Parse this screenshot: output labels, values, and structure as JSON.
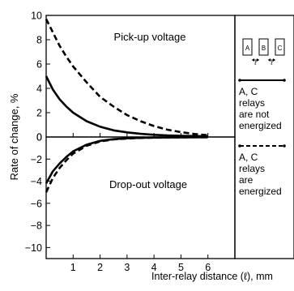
{
  "chart_data": [
    {
      "type": "line",
      "panel": "top",
      "title": "Pick-up voltage",
      "xlim": [
        0,
        7
      ],
      "ylim": [
        0,
        10
      ],
      "yticks": [
        0,
        2,
        4,
        6,
        8,
        10
      ],
      "series": [
        {
          "name": "A, C relays are not energized",
          "style": "solid",
          "x": [
            0,
            0.25,
            0.5,
            0.75,
            1,
            1.5,
            2,
            2.5,
            3,
            3.5,
            4,
            4.5,
            5,
            5.5,
            6
          ],
          "y": [
            5.0,
            3.9,
            3.1,
            2.5,
            2.0,
            1.3,
            0.85,
            0.55,
            0.38,
            0.26,
            0.18,
            0.13,
            0.1,
            0.08,
            0.06
          ]
        },
        {
          "name": "A, C relays are energized",
          "style": "dashed",
          "x": [
            0,
            0.25,
            0.5,
            0.75,
            1,
            1.5,
            2,
            2.5,
            3,
            3.5,
            4,
            4.5,
            5,
            5.5,
            6
          ],
          "y": [
            9.7,
            8.6,
            7.5,
            6.6,
            5.8,
            4.5,
            3.3,
            2.5,
            1.8,
            1.3,
            0.9,
            0.6,
            0.4,
            0.25,
            0.15
          ]
        }
      ]
    },
    {
      "type": "line",
      "panel": "bottom",
      "title": "Drop-out voltage",
      "xlim": [
        0,
        7
      ],
      "ylim": [
        -11,
        0
      ],
      "yticks": [
        0,
        -2,
        -4,
        -6,
        -8,
        -10
      ],
      "series": [
        {
          "name": "A, C relays are not energized",
          "style": "solid",
          "x": [
            0,
            0.25,
            0.5,
            0.75,
            1,
            1.5,
            2,
            2.5,
            3,
            3.5,
            4,
            5,
            6
          ],
          "y": [
            -4.2,
            -3.1,
            -2.4,
            -1.8,
            -1.3,
            -0.7,
            -0.35,
            -0.2,
            -0.12,
            -0.08,
            -0.05,
            -0.03,
            -0.02
          ]
        },
        {
          "name": "A, C relays are energized",
          "style": "dashed",
          "x": [
            0,
            0.25,
            0.5,
            0.75,
            1,
            1.5,
            2,
            2.5,
            3,
            3.5,
            4,
            5,
            6
          ],
          "y": [
            -5.0,
            -3.7,
            -2.8,
            -2.1,
            -1.5,
            -0.8,
            -0.4,
            -0.22,
            -0.14,
            -0.09,
            -0.06,
            -0.03,
            -0.02
          ]
        }
      ]
    }
  ],
  "axes": {
    "ylabel": "Rate of change, %",
    "xlabel": "Inter-relay distance (ℓ), mm",
    "xticks": [
      1,
      2,
      3,
      4,
      5,
      6
    ]
  },
  "legend": {
    "relays": [
      "A",
      "B",
      "C"
    ],
    "gap_symbol": "ℓ",
    "solid_lines": [
      "A, C",
      "relays",
      "are not",
      "energized"
    ],
    "dashed_lines": [
      "A, C",
      "relays",
      "are",
      "energized"
    ]
  }
}
